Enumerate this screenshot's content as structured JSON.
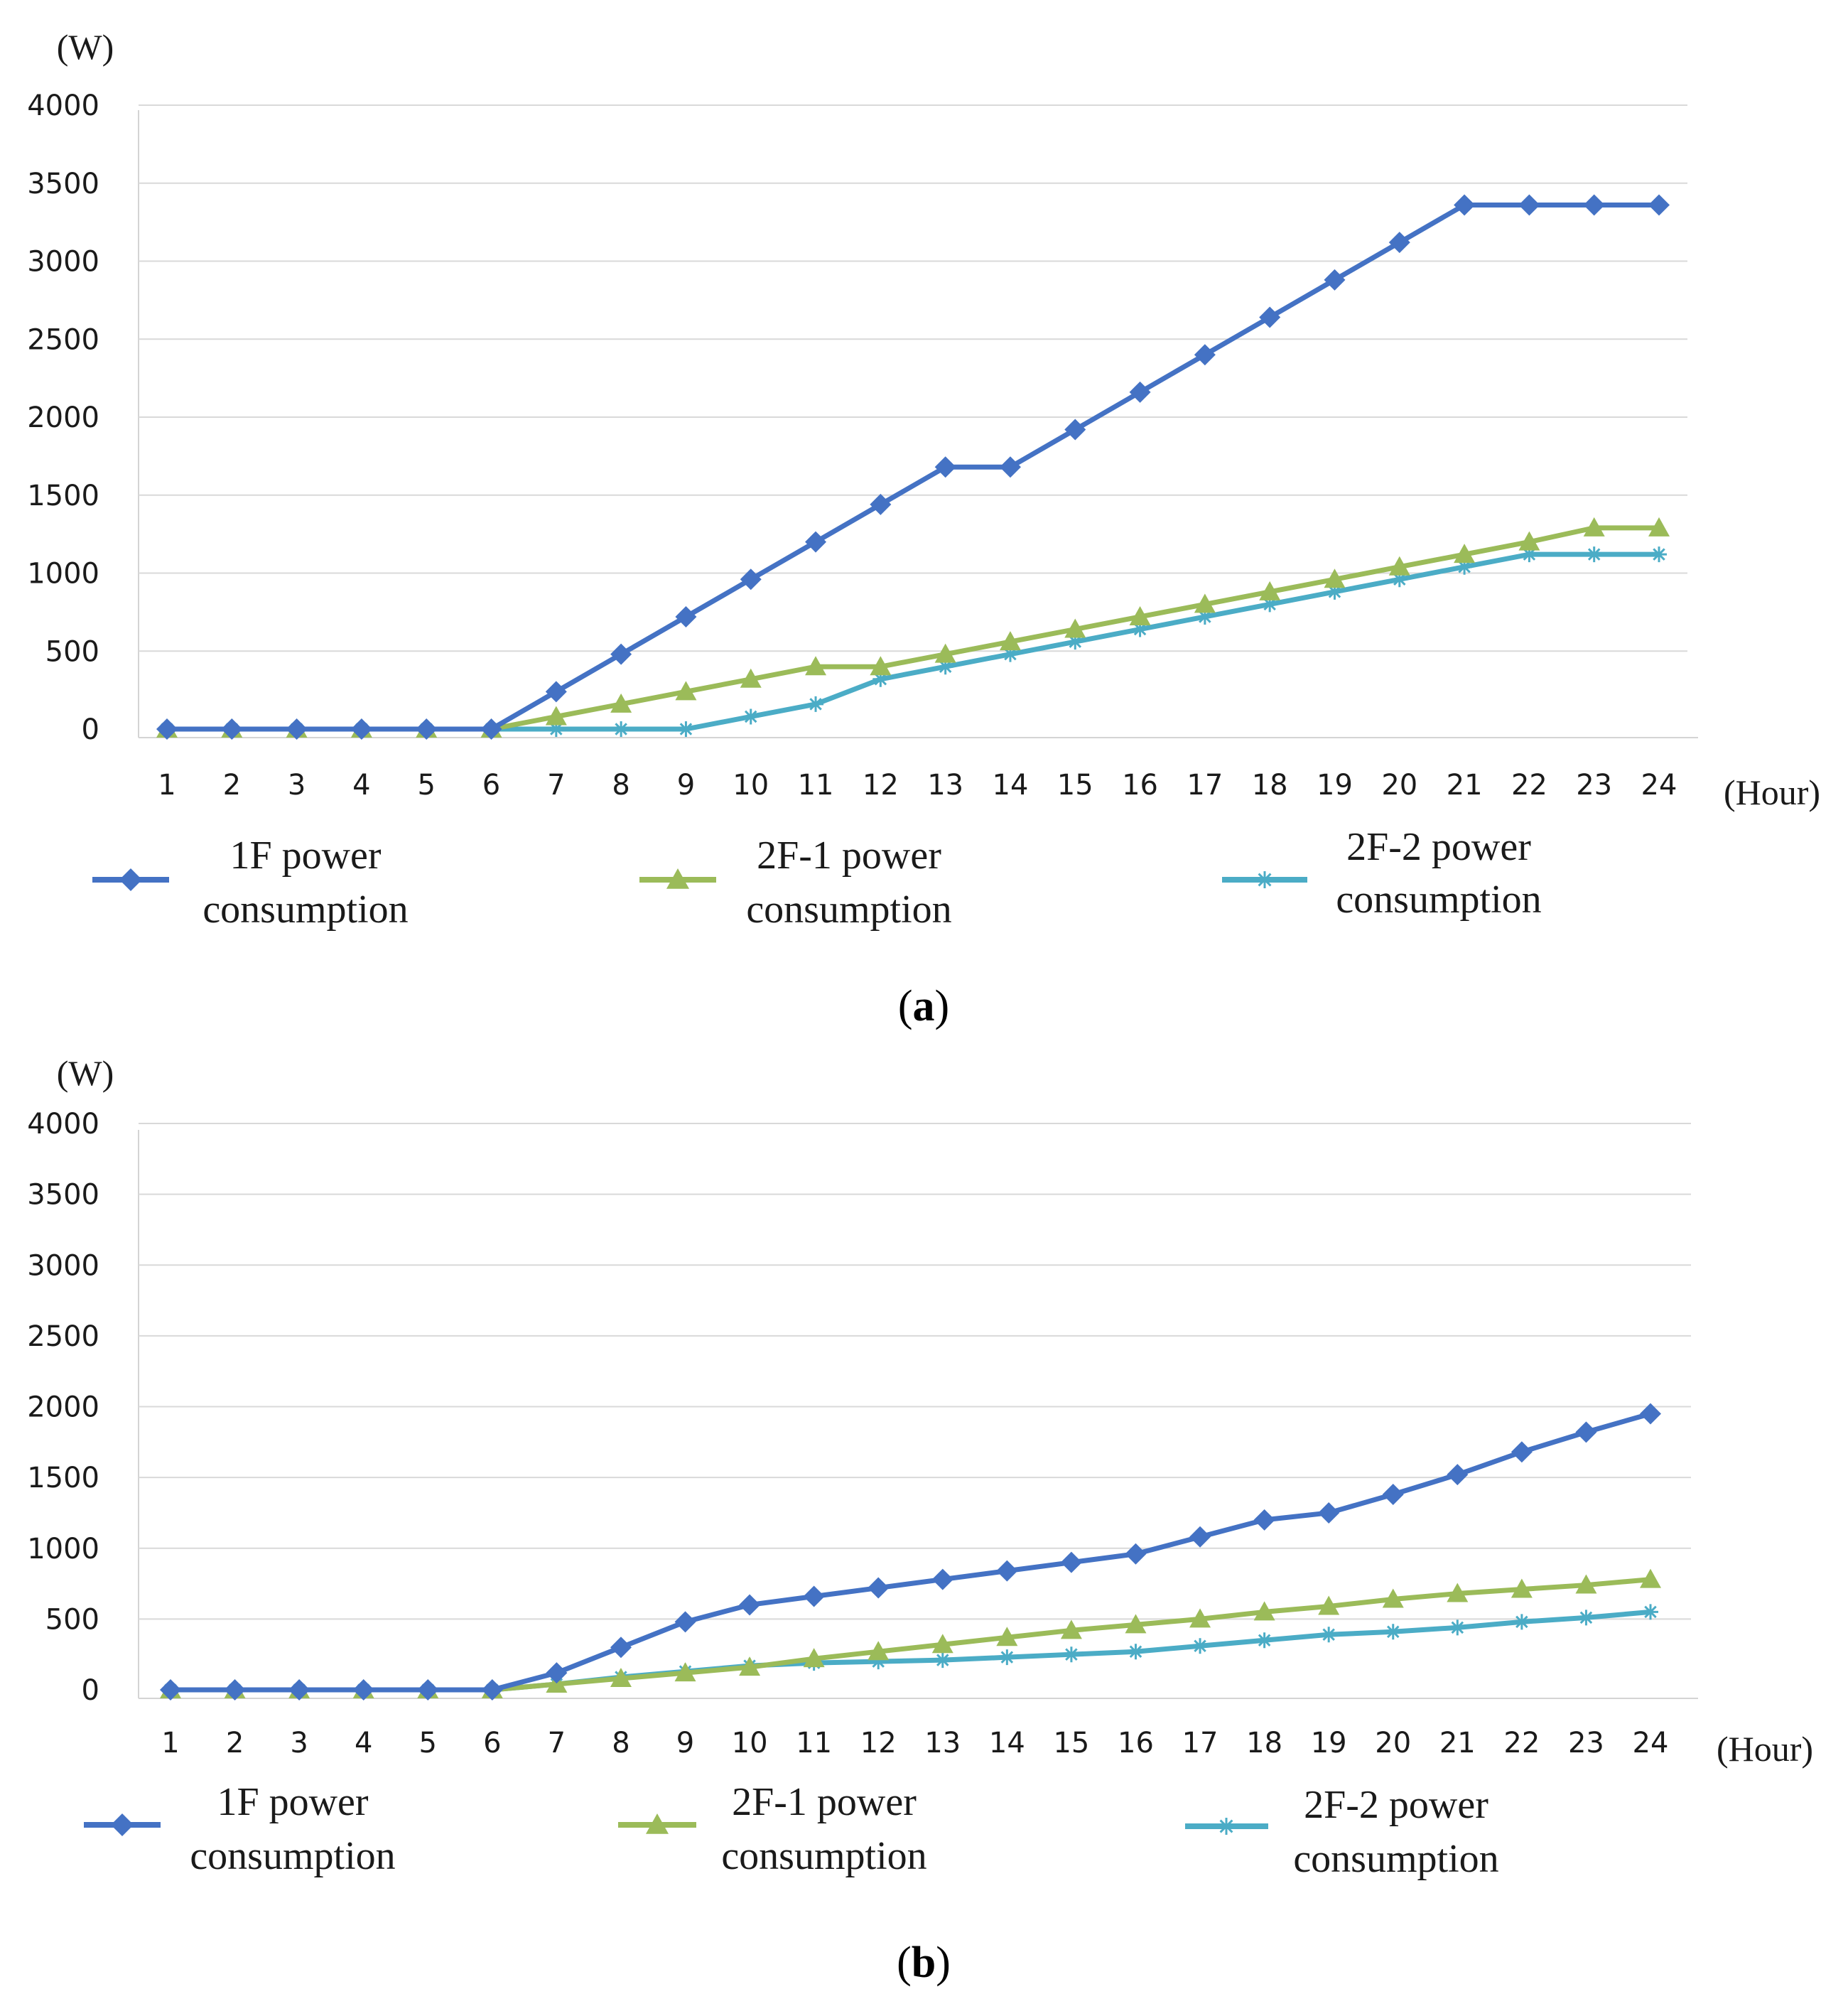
{
  "chart_data": [
    {
      "id": "a",
      "type": "line",
      "caption_letter": "a",
      "ylabel": "(W)",
      "xlabel": "(Hour)",
      "ylim": [
        0,
        4000
      ],
      "yticks": [
        0,
        500,
        1000,
        1500,
        2000,
        2500,
        3000,
        3500,
        4000
      ],
      "grid": true,
      "categories": [
        1,
        2,
        3,
        4,
        5,
        6,
        7,
        8,
        9,
        10,
        11,
        12,
        13,
        14,
        15,
        16,
        17,
        18,
        19,
        20,
        21,
        22,
        23,
        24
      ],
      "series": [
        {
          "name": "1F power consumption",
          "legend_lines": [
            "1F power",
            "consumption"
          ],
          "color": "#4472c4",
          "marker": "diamond",
          "values": [
            0,
            0,
            0,
            0,
            0,
            0,
            240,
            480,
            720,
            960,
            1200,
            1440,
            1680,
            1680,
            1920,
            2160,
            2400,
            2640,
            2880,
            3120,
            3360,
            3360,
            3360,
            3360
          ]
        },
        {
          "name": "2F-1 power consumption",
          "legend_lines": [
            "2F-1 power",
            "consumption"
          ],
          "color": "#9bbb59",
          "marker": "triangle",
          "values": [
            0,
            0,
            0,
            0,
            0,
            0,
            80,
            160,
            240,
            320,
            400,
            400,
            480,
            560,
            640,
            720,
            800,
            880,
            960,
            1040,
            1120,
            1200,
            1290,
            1290
          ]
        },
        {
          "name": "2F-2 power consumption",
          "legend_lines": [
            "2F-2 power",
            "consumption"
          ],
          "color": "#4bacc6",
          "marker": "star",
          "values": [
            0,
            0,
            0,
            0,
            0,
            0,
            0,
            0,
            0,
            80,
            160,
            320,
            400,
            480,
            560,
            640,
            720,
            800,
            880,
            960,
            1040,
            1120,
            1120,
            1120
          ]
        }
      ]
    },
    {
      "id": "b",
      "type": "line",
      "caption_letter": "b",
      "ylabel": "(W)",
      "xlabel": "(Hour)",
      "ylim": [
        0,
        4000
      ],
      "yticks": [
        0,
        500,
        1000,
        1500,
        2000,
        2500,
        3000,
        3500,
        4000
      ],
      "grid": true,
      "categories": [
        1,
        2,
        3,
        4,
        5,
        6,
        7,
        8,
        9,
        10,
        11,
        12,
        13,
        14,
        15,
        16,
        17,
        18,
        19,
        20,
        21,
        22,
        23,
        24
      ],
      "series": [
        {
          "name": "1F power consumption",
          "legend_lines": [
            "1F power",
            "consumption"
          ],
          "color": "#4472c4",
          "marker": "diamond",
          "values": [
            0,
            0,
            0,
            0,
            0,
            0,
            120,
            300,
            480,
            600,
            660,
            720,
            780,
            840,
            900,
            960,
            1080,
            1200,
            1250,
            1380,
            1520,
            1680,
            1820,
            1950
          ]
        },
        {
          "name": "2F-1 power consumption",
          "legend_lines": [
            "2F-1 power",
            "consumption"
          ],
          "color": "#9bbb59",
          "marker": "triangle",
          "values": [
            0,
            0,
            0,
            0,
            0,
            0,
            40,
            80,
            120,
            160,
            220,
            270,
            320,
            370,
            420,
            460,
            500,
            550,
            590,
            640,
            680,
            710,
            740,
            780
          ]
        },
        {
          "name": "2F-2 power consumption",
          "legend_lines": [
            "2F-2 power",
            "consumption"
          ],
          "color": "#4bacc6",
          "marker": "star",
          "values": [
            0,
            0,
            0,
            0,
            0,
            0,
            40,
            90,
            130,
            170,
            190,
            200,
            210,
            230,
            250,
            270,
            310,
            350,
            390,
            410,
            440,
            480,
            510,
            550
          ]
        }
      ]
    }
  ]
}
